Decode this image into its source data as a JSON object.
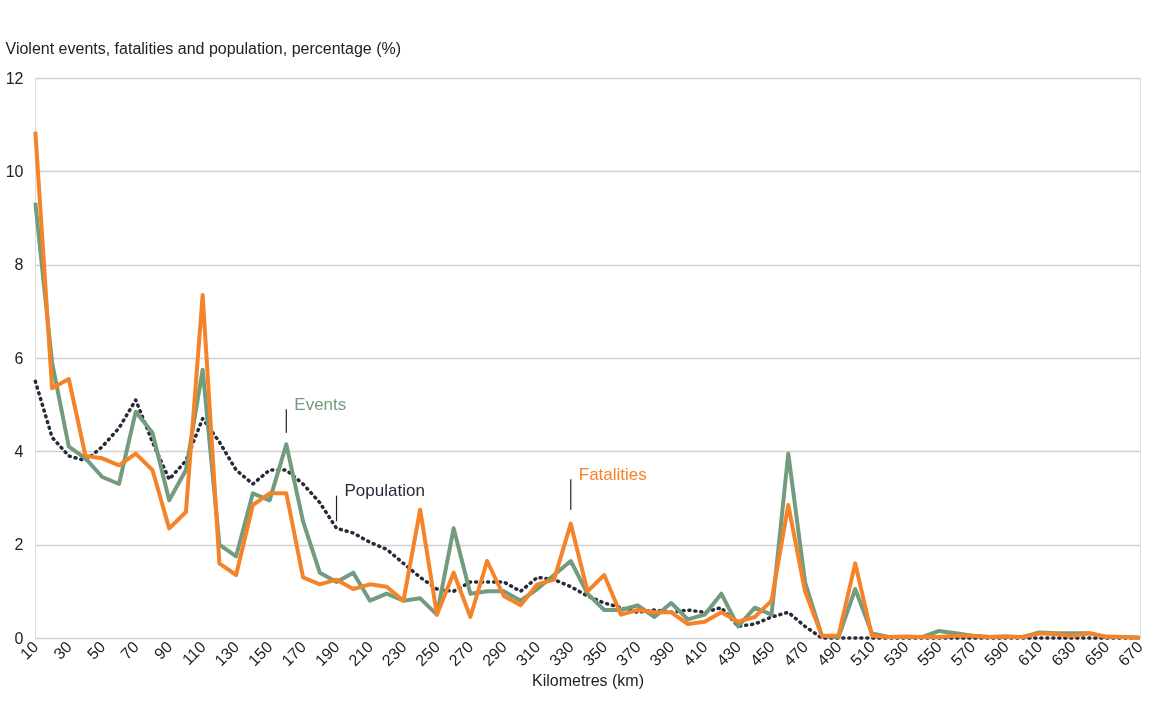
{
  "chart_data": {
    "type": "line",
    "ylabel": "Violent events, fatalities and population, percentage (%)",
    "xlabel": "Kilometres (km)",
    "categories": [
      "10",
      null,
      "30",
      null,
      "50",
      null,
      "70",
      null,
      "90",
      null,
      "110",
      null,
      "130",
      null,
      "150",
      null,
      "170",
      null,
      "190",
      null,
      "210",
      null,
      "230",
      null,
      "250",
      null,
      "270",
      null,
      "290",
      null,
      "310",
      null,
      "330",
      null,
      "350",
      null,
      "370",
      null,
      "390",
      null,
      "410",
      null,
      "430",
      null,
      "450",
      null,
      "470",
      null,
      "490",
      null,
      "510",
      null,
      "530",
      null,
      "550",
      null,
      "570",
      null,
      "590",
      null,
      "610",
      null,
      "630",
      null,
      "650",
      null,
      "670"
    ],
    "series": [
      {
        "name": "Population",
        "color": "#262b3a",
        "line_style": "dotted",
        "values": [
          5.5,
          4.3,
          3.9,
          3.8,
          4.1,
          4.5,
          5.1,
          4.2,
          3.4,
          3.8,
          4.7,
          4.2,
          3.6,
          3.3,
          3.6,
          3.6,
          3.3,
          2.9,
          2.35,
          2.25,
          2.05,
          1.9,
          1.6,
          1.3,
          1.05,
          1.0,
          1.2,
          1.2,
          1.2,
          1.0,
          1.3,
          1.25,
          1.1,
          0.9,
          0.75,
          0.65,
          0.55,
          0.6,
          0.55,
          0.6,
          0.55,
          0.65,
          0.25,
          0.3,
          0.45,
          0.55,
          0.25,
          0.0,
          0.0,
          0.0,
          0.0,
          0.0,
          0.0,
          0.0,
          0.0,
          0.0,
          0.0,
          0.0,
          0.0,
          0.0,
          0.0,
          0.0,
          0.0,
          0.0,
          0.0,
          0.0,
          0.0
        ]
      },
      {
        "name": "Events",
        "color": "#739b7d",
        "line_style": "solid",
        "values": [
          9.33,
          5.9,
          4.1,
          3.85,
          3.45,
          3.3,
          4.85,
          4.4,
          2.95,
          3.6,
          5.75,
          2.0,
          1.75,
          3.1,
          2.95,
          4.15,
          2.5,
          1.4,
          1.2,
          1.4,
          0.8,
          0.95,
          0.8,
          0.85,
          0.5,
          2.35,
          0.95,
          1.0,
          1.0,
          0.8,
          1.05,
          1.35,
          1.65,
          0.95,
          0.6,
          0.6,
          0.7,
          0.45,
          0.75,
          0.4,
          0.5,
          0.95,
          0.25,
          0.65,
          0.5,
          3.95,
          1.2,
          0.05,
          0.02,
          1.05,
          0.1,
          0.02,
          0.02,
          0.02,
          0.15,
          0.1,
          0.05,
          0.02,
          0.03,
          0.02,
          0.12,
          0.1,
          0.1,
          0.1,
          0.02,
          0.02,
          0.01
        ]
      },
      {
        "name": "Fatalities",
        "color": "#f5832a",
        "line_style": "solid",
        "values": [
          10.85,
          5.35,
          5.55,
          3.9,
          3.85,
          3.7,
          3.95,
          3.6,
          2.35,
          2.7,
          7.35,
          1.6,
          1.35,
          2.85,
          3.1,
          3.1,
          1.3,
          1.15,
          1.25,
          1.05,
          1.15,
          1.1,
          0.8,
          2.75,
          0.5,
          1.4,
          0.45,
          1.65,
          0.9,
          0.7,
          1.15,
          1.25,
          2.45,
          1.0,
          1.35,
          0.5,
          0.6,
          0.55,
          0.55,
          0.3,
          0.35,
          0.55,
          0.35,
          0.45,
          0.8,
          2.85,
          1.0,
          0.05,
          0.05,
          1.6,
          0.05,
          0.02,
          0.03,
          0.02,
          0.02,
          0.05,
          0.05,
          0.02,
          0.03,
          0.02,
          0.1,
          0.08,
          0.05,
          0.1,
          0.03,
          0.02,
          0.0
        ]
      }
    ],
    "ylim": [
      0,
      12
    ],
    "yticks": [
      0,
      2,
      4,
      6,
      8,
      10,
      12
    ],
    "grid": "y",
    "legend": false,
    "marker": "none"
  }
}
